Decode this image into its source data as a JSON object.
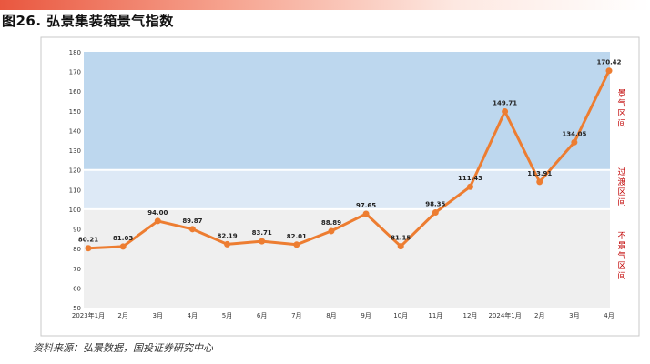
{
  "header": {
    "figure_title": "图26. 弘景集装箱景气指数"
  },
  "footer": {
    "source": "资料来源：弘景数据，国投证券研究中心"
  },
  "colors": {
    "line": "#ed7d31",
    "boom_zone": "#bdd7ee",
    "transition_zone": "#dde9f6",
    "slump_zone": "#efefef",
    "zone_label": "#c00000",
    "accent_band": "#e9573f"
  },
  "chart_data": {
    "type": "line",
    "title": "",
    "xlabel": "",
    "ylabel": "",
    "categories": [
      "2023年1月",
      "2月",
      "3月",
      "4月",
      "5月",
      "6月",
      "7月",
      "8月",
      "9月",
      "10月",
      "11月",
      "12月",
      "2024年1月",
      "2月",
      "3月",
      "4月"
    ],
    "series": [
      {
        "values": [
          80.21,
          81.03,
          94.0,
          89.87,
          82.19,
          83.71,
          82.01,
          88.89,
          97.65,
          81.15,
          98.35,
          111.43,
          149.71,
          113.91,
          134.05,
          170.42
        ]
      }
    ],
    "data_labels": [
      "80.21",
      "81.03",
      "94.00",
      "89.87",
      "82.19",
      "83.71",
      "82.01",
      "88.89",
      "97.65",
      "81.15",
      "98.35",
      "111.43",
      "149.71",
      "113.91",
      "134.05",
      "170.42"
    ],
    "ylim": [
      50,
      180
    ],
    "yticks": [
      50,
      60,
      70,
      80,
      90,
      100,
      110,
      120,
      130,
      140,
      150,
      160,
      170,
      180
    ],
    "zones": [
      {
        "label": "景气区间",
        "from": 120,
        "to": 180
      },
      {
        "label": "过渡区间",
        "from": 100,
        "to": 120
      },
      {
        "label": "不景气区间",
        "from": 50,
        "to": 100
      }
    ],
    "grid": false,
    "legend": "none"
  }
}
